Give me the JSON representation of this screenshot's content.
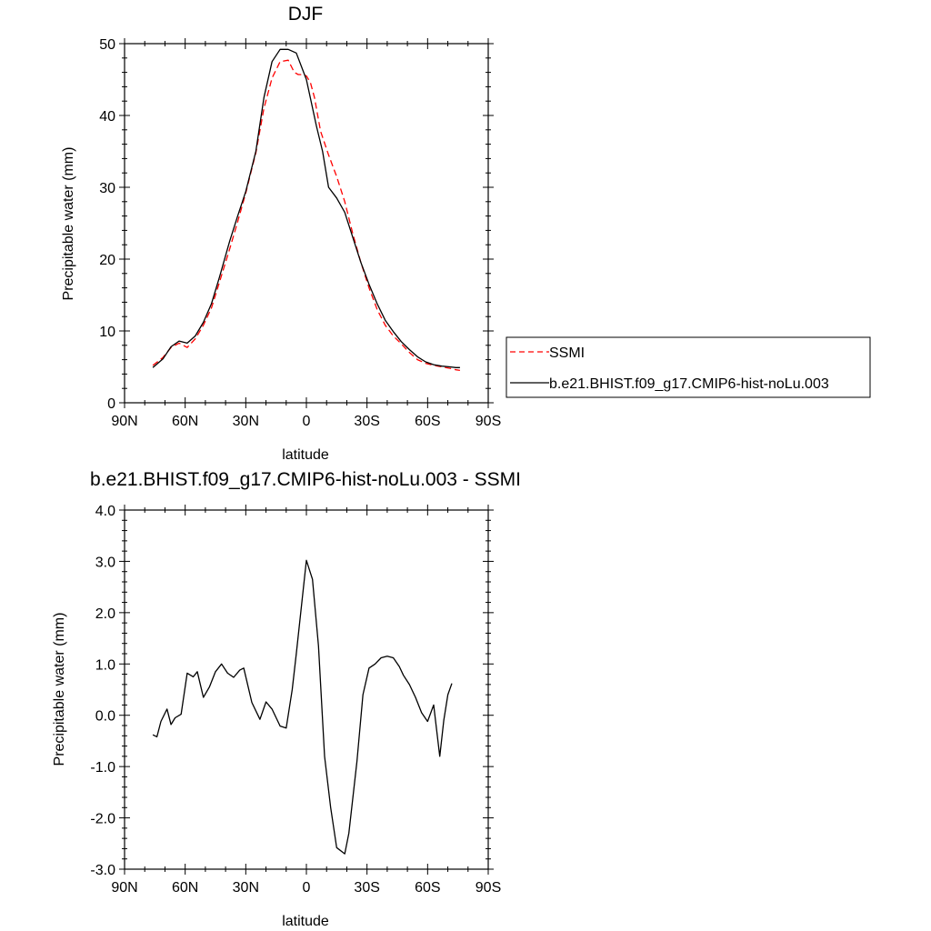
{
  "chart_data": [
    {
      "type": "line",
      "title": "DJF",
      "xlabel": "latitude",
      "ylabel": "Precipitable water (mm)",
      "xlim": [
        90,
        -90
      ],
      "ylim": [
        0,
        50
      ],
      "x_ticks": [
        90,
        60,
        30,
        0,
        -30,
        -60,
        -90
      ],
      "x_tick_labels": [
        "90N",
        "60N",
        "30N",
        "0",
        "30S",
        "60S",
        "90S"
      ],
      "y_ticks": [
        0,
        10,
        20,
        30,
        40,
        50
      ],
      "y_tick_labels": [
        "0",
        "10",
        "20",
        "30",
        "40",
        "50"
      ],
      "grid": false,
      "legend_position": "right",
      "series": [
        {
          "name": "SSMI",
          "color": "#ff0000",
          "dash": "dashed",
          "x": [
            76,
            71,
            67,
            63,
            59,
            55,
            51,
            47,
            43,
            38,
            34,
            30,
            25,
            21,
            17,
            13,
            9,
            6,
            4,
            2,
            0,
            -2,
            -4,
            -7,
            -11,
            -15,
            -19,
            -23,
            -27,
            -31,
            -35,
            -39,
            -43,
            -47,
            -51,
            -55,
            -59,
            -63,
            -67,
            -71,
            -74,
            -76
          ],
          "y": [
            5.2,
            6.3,
            7.7,
            8.3,
            7.7,
            8.9,
            10.8,
            13.2,
            16.8,
            21.4,
            25.2,
            29.2,
            34.8,
            41.0,
            45.2,
            47.5,
            47.7,
            46.0,
            45.7,
            45.7,
            45.5,
            44.6,
            42.5,
            37.8,
            34.5,
            31.5,
            28.0,
            23.5,
            19.5,
            16.0,
            13.0,
            10.8,
            9.3,
            8.2,
            7.0,
            6.0,
            5.5,
            5.2,
            5.0,
            4.8,
            4.6,
            4.5
          ]
        },
        {
          "name": "b.e21.BHIST.f09_g17.CMIP6-hist-noLu.003",
          "color": "#000000",
          "dash": "solid",
          "x": [
            76,
            71,
            67,
            63,
            59,
            55,
            51,
            47,
            43,
            38,
            34,
            30,
            25,
            21,
            17,
            13,
            9,
            5,
            0,
            -5,
            -8,
            -11,
            -15,
            -19,
            -23,
            -27,
            -31,
            -35,
            -39,
            -43,
            -47,
            -51,
            -55,
            -59,
            -63,
            -67,
            -71,
            -74,
            -76
          ],
          "y": [
            4.9,
            6.1,
            7.8,
            8.6,
            8.3,
            9.3,
            11.2,
            13.8,
            17.5,
            22.5,
            26.0,
            29.4,
            35.0,
            42.5,
            47.5,
            49.2,
            49.2,
            48.7,
            45.0,
            38.5,
            35.0,
            30.0,
            28.5,
            26.5,
            23.0,
            19.5,
            16.5,
            13.8,
            11.5,
            9.9,
            8.5,
            7.4,
            6.4,
            5.7,
            5.3,
            5.1,
            5.0,
            4.9,
            4.9
          ]
        }
      ]
    },
    {
      "type": "line",
      "title": "b.e21.BHIST.f09_g17.CMIP6-hist-noLu.003 - SSMI",
      "xlabel": "latitude",
      "ylabel": "Precipitable water (mm)",
      "xlim": [
        90,
        -90
      ],
      "ylim": [
        -3,
        4
      ],
      "x_ticks": [
        90,
        60,
        30,
        0,
        -30,
        -60,
        -90
      ],
      "x_tick_labels": [
        "90N",
        "60N",
        "30N",
        "0",
        "30S",
        "60S",
        "90S"
      ],
      "y_ticks": [
        -3,
        -2,
        -1,
        0,
        1,
        2,
        3,
        4
      ],
      "y_tick_labels": [
        "-3.0",
        "-2.0",
        "-1.0",
        "0.0",
        "1.0",
        "2.0",
        "3.0",
        "4.0"
      ],
      "grid": false,
      "series": [
        {
          "color": "#000000",
          "dash": "solid",
          "x": [
            76,
            74,
            72,
            69,
            67,
            65,
            62,
            59,
            56,
            54,
            51,
            48,
            45,
            42,
            39,
            36,
            33,
            31,
            27,
            23,
            20,
            17,
            13,
            10,
            7,
            5,
            2,
            0,
            -3,
            -6,
            -9,
            -12,
            -15,
            -19,
            -21,
            -25,
            -28,
            -31,
            -34,
            -37,
            -40,
            -43,
            -46,
            -48,
            -51,
            -54,
            -57,
            -60,
            -63,
            -66,
            -68,
            -70,
            -72
          ],
          "y": [
            -0.38,
            -0.42,
            -0.12,
            0.12,
            -0.18,
            -0.05,
            0.02,
            0.82,
            0.75,
            0.85,
            0.35,
            0.55,
            0.85,
            1.0,
            0.82,
            0.74,
            0.88,
            0.92,
            0.25,
            -0.08,
            0.26,
            0.12,
            -0.21,
            -0.25,
            0.5,
            1.2,
            2.3,
            3.02,
            2.65,
            1.35,
            -0.8,
            -1.8,
            -2.58,
            -2.7,
            -2.3,
            -0.9,
            0.4,
            0.92,
            1.0,
            1.12,
            1.15,
            1.12,
            0.95,
            0.78,
            0.6,
            0.35,
            0.05,
            -0.12,
            0.2,
            -0.8,
            -0.1,
            0.4,
            0.62
          ]
        }
      ]
    }
  ]
}
